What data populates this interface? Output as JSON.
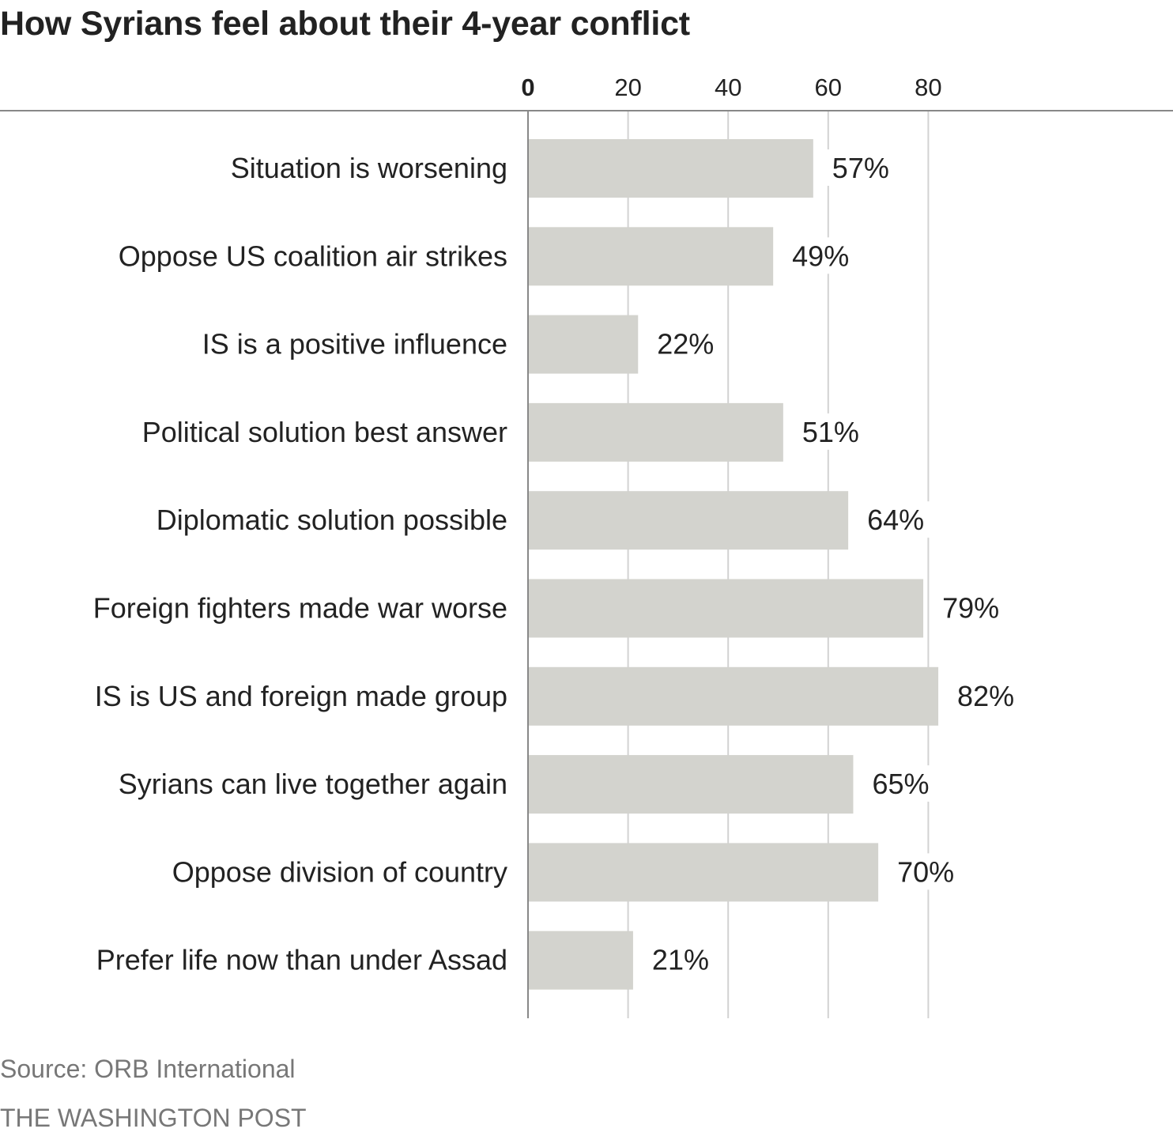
{
  "colors": {
    "bar": "#d3d3ce",
    "grid": "#d2d2d2",
    "axis": "#888888",
    "text": "#222222",
    "muted": "#777777"
  },
  "chart_data": {
    "type": "bar",
    "orientation": "horizontal",
    "title": "How Syrians feel about their 4-year conflict",
    "xlabel": "",
    "ylabel": "",
    "xlim": [
      0,
      100
    ],
    "xticks": [
      0,
      20,
      40,
      60,
      80
    ],
    "tick_labels": [
      "0",
      "20",
      "40",
      "60",
      "80"
    ],
    "grid": true,
    "categories": [
      "Situation is worsening",
      "Oppose US coalition air strikes",
      "IS is a positive influence",
      "Political solution best answer",
      "Diplomatic solution possible",
      "Foreign fighters made war worse",
      "IS is US and foreign made group",
      "Syrians can live together again",
      "Oppose division of country",
      "Prefer life now than under Assad"
    ],
    "values": [
      57,
      49,
      22,
      51,
      64,
      79,
      82,
      65,
      70,
      21
    ],
    "data_labels": [
      "57%",
      "49%",
      "22%",
      "51%",
      "64%",
      "79%",
      "82%",
      "65%",
      "70%",
      "21%"
    ]
  },
  "footer": {
    "source": "Source: ORB International",
    "credit": "THE WASHINGTON POST"
  }
}
